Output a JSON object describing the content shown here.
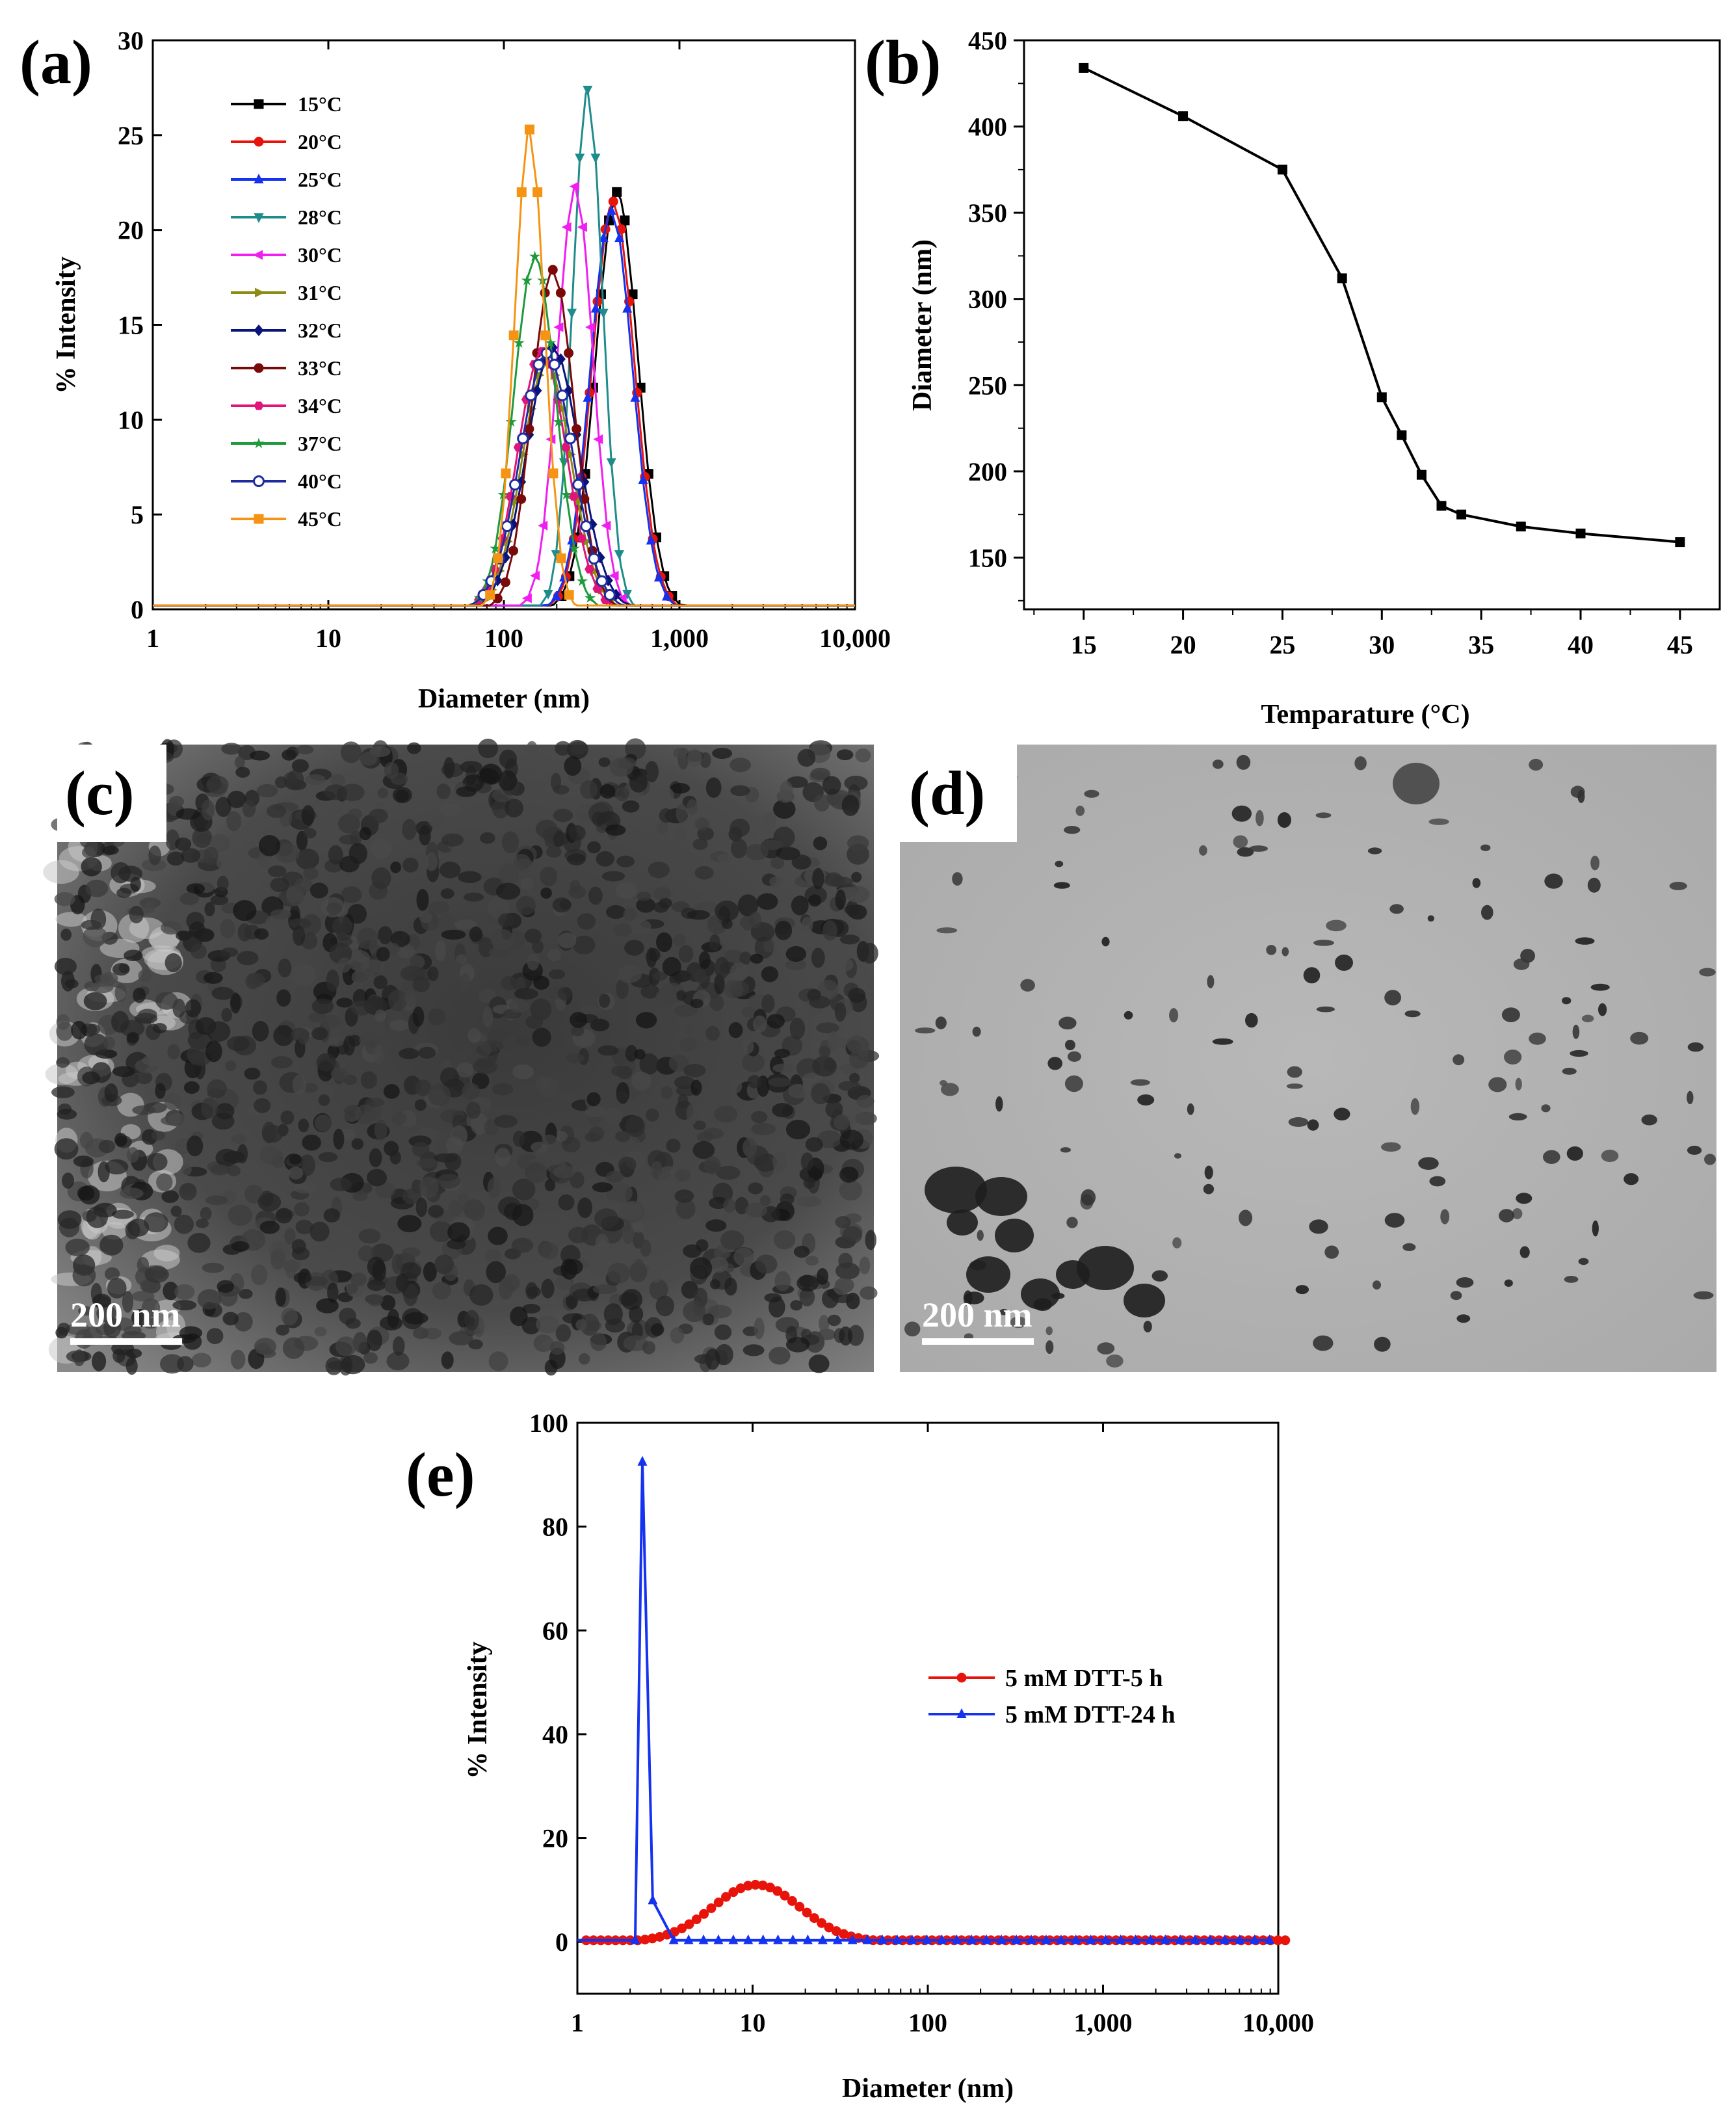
{
  "panels": {
    "a": "(a)",
    "b": "(b)",
    "c": "(c)",
    "d": "(d)",
    "e": "(e)"
  },
  "scale_bars": {
    "c": "200 nm",
    "d": "200 nm"
  },
  "colors": {
    "15": "#000000",
    "20": "#e8140c",
    "25": "#1432f0",
    "28": "#1f8c8c",
    "30": "#f01ef0",
    "31": "#8c8c14",
    "32": "#0a1478",
    "33": "#7a0a0a",
    "34": "#e0147a",
    "37": "#1e9a3c",
    "40": "#1e2ca0",
    "45": "#f59414",
    "dtt5": "#e8140c",
    "dtt24": "#1432f0"
  },
  "chart_data": [
    {
      "id": "a",
      "type": "line",
      "xscale": "log",
      "xlabel": "Diameter (nm)",
      "ylabel": "% Intensity",
      "xlim": [
        1,
        10000
      ],
      "ylim": [
        0,
        30
      ],
      "xticks": [
        1,
        10,
        100,
        1000,
        10000
      ],
      "xtick_labels": [
        "1",
        "10",
        "100",
        "1,000",
        "10,000"
      ],
      "yticks": [
        0,
        5,
        10,
        15,
        20,
        25,
        30
      ],
      "ytick_labels": [
        "0",
        "5",
        "10",
        "15",
        "20",
        "25",
        "30"
      ],
      "legend_position": "top-left",
      "series": [
        {
          "name": "15°C",
          "key": "15",
          "marker": "square",
          "peak": 440,
          "height": 22.0,
          "width": 0.12
        },
        {
          "name": "20°C",
          "key": "20",
          "marker": "circle",
          "peak": 420,
          "height": 21.5,
          "width": 0.12
        },
        {
          "name": "25°C",
          "key": "25",
          "marker": "triangle-up",
          "peak": 410,
          "height": 21.0,
          "width": 0.12
        },
        {
          "name": "28°C",
          "key": "28",
          "marker": "triangle-down",
          "peak": 300,
          "height": 27.4,
          "width": 0.085
        },
        {
          "name": "30°C",
          "key": "30",
          "marker": "triangle-left",
          "peak": 255,
          "height": 22.3,
          "width": 0.1
        },
        {
          "name": "31°C",
          "key": "31",
          "marker": "triangle-right",
          "peak": 175,
          "height": 13.0,
          "width": 0.14
        },
        {
          "name": "32°C",
          "key": "32",
          "marker": "diamond",
          "peak": 190,
          "height": 13.8,
          "width": 0.15
        },
        {
          "name": "33°C",
          "key": "33",
          "marker": "circle",
          "peak": 190,
          "height": 17.9,
          "width": 0.12
        },
        {
          "name": "34°C",
          "key": "34",
          "marker": "hexagon",
          "peak": 165,
          "height": 13.6,
          "width": 0.14
        },
        {
          "name": "37°C",
          "key": "37",
          "marker": "star",
          "peak": 150,
          "height": 18.6,
          "width": 0.12
        },
        {
          "name": "40°C",
          "key": "40",
          "marker": "circle-open",
          "peak": 175,
          "height": 13.5,
          "width": 0.15
        },
        {
          "name": "45°C",
          "key": "45",
          "marker": "square",
          "peak": 140,
          "height": 25.3,
          "width": 0.085
        }
      ]
    },
    {
      "id": "b",
      "type": "line",
      "xlabel": "Temparature (°C)",
      "ylabel": "Diameter (nm)",
      "xlim": [
        12,
        47
      ],
      "ylim": [
        120,
        450
      ],
      "xticks": [
        15,
        20,
        25,
        30,
        35,
        40,
        45
      ],
      "yticks": [
        150,
        200,
        250,
        300,
        350,
        400,
        450
      ],
      "x": [
        15,
        20,
        25,
        28,
        30,
        31,
        32,
        33,
        34,
        37,
        40,
        45
      ],
      "y": [
        434,
        406,
        375,
        312,
        243,
        221,
        198,
        180,
        175,
        168,
        164,
        159
      ]
    },
    {
      "id": "e",
      "type": "line",
      "xscale": "log",
      "xlabel": "Diameter (nm)",
      "ylabel": "% Intensity",
      "xlim": [
        1,
        10000
      ],
      "ylim": [
        -10,
        100
      ],
      "xticks": [
        1,
        10,
        100,
        1000,
        10000
      ],
      "xtick_labels": [
        "1",
        "10",
        "100",
        "1,000",
        "10,000"
      ],
      "yticks": [
        0,
        20,
        40,
        60,
        80,
        100
      ],
      "legend_position": "right",
      "series": [
        {
          "name": "5 mM DTT-5 h",
          "key": "dtt5",
          "marker": "circle",
          "peak": 10.5,
          "height": 11.0,
          "width": 0.25
        },
        {
          "name": "5 mM DTT-24 h",
          "key": "dtt24",
          "marker": "triangle-up",
          "peak": 2.35,
          "height": 92.5,
          "width": 0.04
        }
      ]
    }
  ]
}
